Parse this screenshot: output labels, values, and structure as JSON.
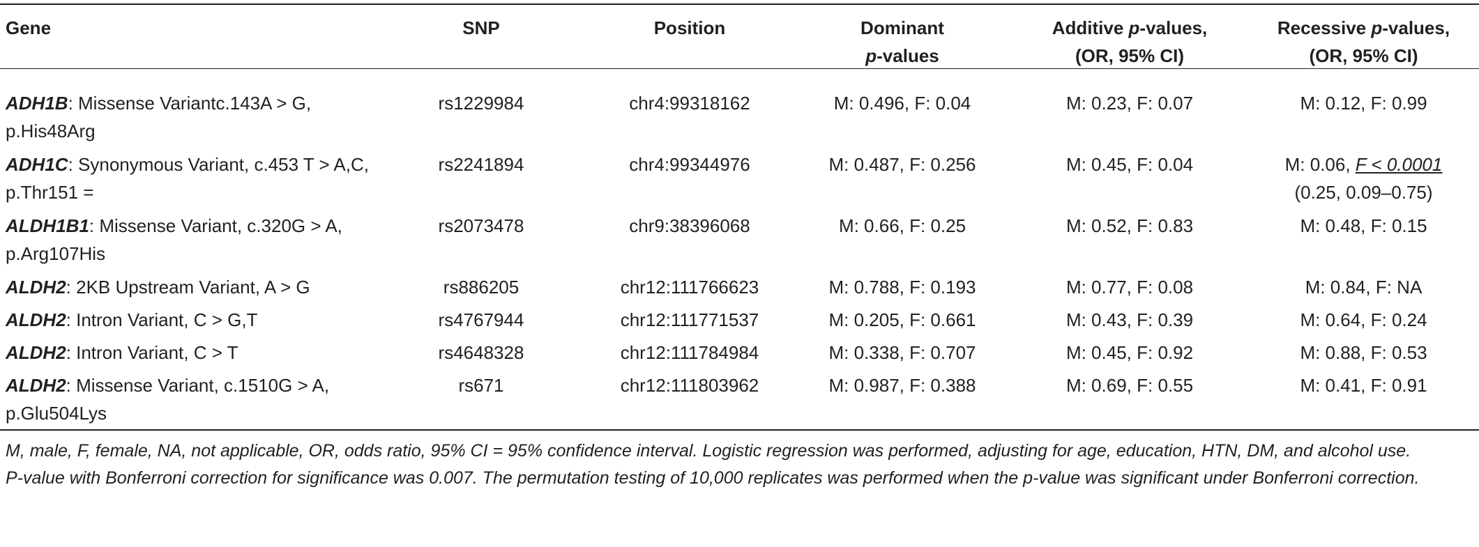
{
  "table": {
    "headers": {
      "gene": "Gene",
      "snp": "SNP",
      "position": "Position",
      "dominant_l1": "Dominant",
      "dominant_l2_italic": "p",
      "dominant_l2_rest": "-values",
      "additive_pre": "Additive ",
      "additive_italic": "p",
      "additive_post": "-values,",
      "additive_l2": "(OR, 95% CI)",
      "recessive_pre": "Recessive ",
      "recessive_italic": "p",
      "recessive_post": "-values,",
      "recessive_l2": "(OR, 95% CI)"
    },
    "rows": [
      {
        "gene": "ADH1B",
        "desc": ": Missense Variantc.143A > G, p.His48Arg",
        "snp": "rs1229984",
        "position": "chr4:99318162",
        "dominant": "M: 0.496, F: 0.04",
        "additive": "M: 0.23, F: 0.07",
        "recessive": "M: 0.12, F: 0.99"
      },
      {
        "gene": "ADH1C",
        "desc": ": Synonymous Variant, c.453 T > A,C, p.Thr151 =",
        "snp": "rs2241894",
        "position": "chr4:99344976",
        "dominant": "M: 0.487, F: 0.256",
        "additive": "M: 0.45, F: 0.04",
        "recessive_pre": "M: 0.06, ",
        "recessive_sig": "F < 0.0001",
        "recessive_ci": "(0.25, 0.09–0.75)"
      },
      {
        "gene": "ALDH1B1",
        "desc": ": Missense Variant, c.320G > A, p.Arg107His",
        "snp": "rs2073478",
        "position": "chr9:38396068",
        "dominant": "M: 0.66, F: 0.25",
        "additive": "M: 0.52, F: 0.83",
        "recessive": "M: 0.48, F: 0.15"
      },
      {
        "gene": "ALDH2",
        "desc": ": 2KB Upstream Variant, A > G",
        "snp": "rs886205",
        "position": "chr12:111766623",
        "dominant": "M: 0.788, F: 0.193",
        "additive": "M: 0.77, F: 0.08",
        "recessive": "M: 0.84, F: NA"
      },
      {
        "gene": "ALDH2",
        "desc": ": Intron Variant, C > G,T",
        "snp": "rs4767944",
        "position": "chr12:111771537",
        "dominant": "M: 0.205, F: 0.661",
        "additive": "M: 0.43, F: 0.39",
        "recessive": "M: 0.64, F: 0.24"
      },
      {
        "gene": "ALDH2",
        "desc": ": Intron Variant, C > T",
        "snp": "rs4648328",
        "position": "chr12:111784984",
        "dominant": "M: 0.338, F: 0.707",
        "additive": "M: 0.45, F: 0.92",
        "recessive": "M: 0.88, F: 0.53"
      },
      {
        "gene": "ALDH2",
        "desc": ": Missense Variant, c.1510G > A, p.Glu504Lys",
        "snp": "rs671",
        "position": "chr12:111803962",
        "dominant": "M: 0.987, F: 0.388",
        "additive": "M: 0.69, F: 0.55",
        "recessive": "M: 0.41, F: 0.91"
      }
    ]
  },
  "footnotes": [
    "M, male, F, female, NA, not applicable, OR, odds ratio, 95% CI = 95% confidence interval. Logistic regression was performed, adjusting for age, education, HTN, DM, and alcohol use.",
    "P-value with Bonferroni correction for significance was 0.007. The permutation testing of 10,000 replicates was performed when the p-value was significant under Bonferroni correction."
  ]
}
